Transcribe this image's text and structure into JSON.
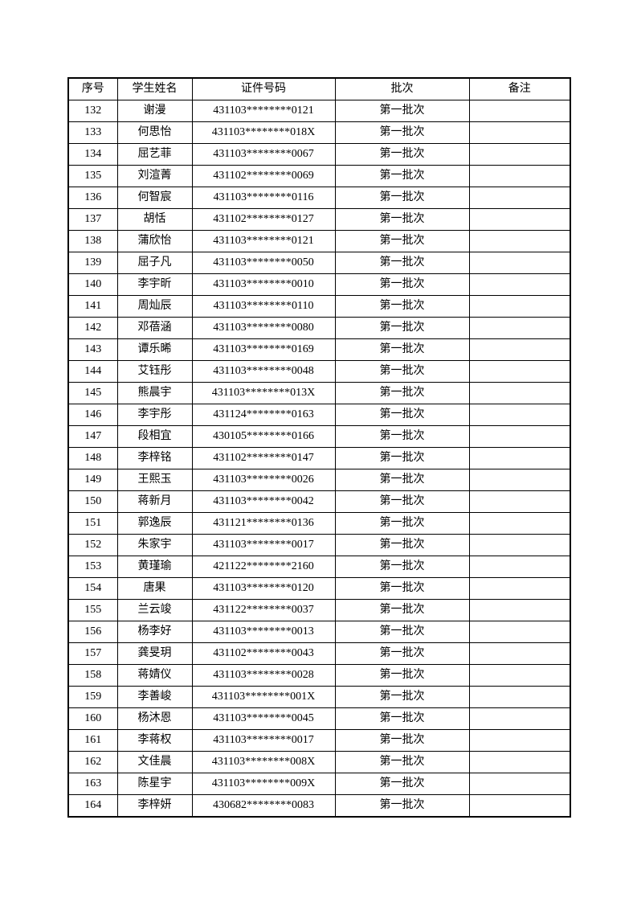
{
  "table": {
    "headers": [
      "序号",
      "学生姓名",
      "证件号码",
      "批次",
      "备注"
    ],
    "rows": [
      [
        "132",
        "谢漫",
        "431103********0121",
        "第一批次",
        ""
      ],
      [
        "133",
        "何思怡",
        "431103********018X",
        "第一批次",
        ""
      ],
      [
        "134",
        "屈艺菲",
        "431103********0067",
        "第一批次",
        ""
      ],
      [
        "135",
        "刘渲菁",
        "431102********0069",
        "第一批次",
        ""
      ],
      [
        "136",
        "何智宸",
        "431103********0116",
        "第一批次",
        ""
      ],
      [
        "137",
        "胡恬",
        "431102********0127",
        "第一批次",
        ""
      ],
      [
        "138",
        "蒲欣怡",
        "431103********0121",
        "第一批次",
        ""
      ],
      [
        "139",
        "屈子凡",
        "431103********0050",
        "第一批次",
        ""
      ],
      [
        "140",
        "李宇昕",
        "431103********0010",
        "第一批次",
        ""
      ],
      [
        "141",
        "周灿辰",
        "431103********0110",
        "第一批次",
        ""
      ],
      [
        "142",
        "邓蓓涵",
        "431103********0080",
        "第一批次",
        ""
      ],
      [
        "143",
        "谭乐晞",
        "431103********0169",
        "第一批次",
        ""
      ],
      [
        "144",
        "艾钰彤",
        "431103********0048",
        "第一批次",
        ""
      ],
      [
        "145",
        "熊晨宇",
        "431103********013X",
        "第一批次",
        ""
      ],
      [
        "146",
        "李宇彤",
        "431124********0163",
        "第一批次",
        ""
      ],
      [
        "147",
        "段相宜",
        "430105********0166",
        "第一批次",
        ""
      ],
      [
        "148",
        "李梓铭",
        "431102********0147",
        "第一批次",
        ""
      ],
      [
        "149",
        "王熙玉",
        "431103********0026",
        "第一批次",
        ""
      ],
      [
        "150",
        "蒋新月",
        "431103********0042",
        "第一批次",
        ""
      ],
      [
        "151",
        "郭逸辰",
        "431121********0136",
        "第一批次",
        ""
      ],
      [
        "152",
        "朱家宇",
        "431103********0017",
        "第一批次",
        ""
      ],
      [
        "153",
        "黄瑾瑜",
        "421122********2160",
        "第一批次",
        ""
      ],
      [
        "154",
        "唐果",
        "431103********0120",
        "第一批次",
        ""
      ],
      [
        "155",
        "兰云竣",
        "431122********0037",
        "第一批次",
        ""
      ],
      [
        "156",
        "杨李好",
        "431103********0013",
        "第一批次",
        ""
      ],
      [
        "157",
        "龚旻玥",
        "431102********0043",
        "第一批次",
        ""
      ],
      [
        "158",
        "蒋婧仪",
        "431103********0028",
        "第一批次",
        ""
      ],
      [
        "159",
        "李善峻",
        "431103********001X",
        "第一批次",
        ""
      ],
      [
        "160",
        "杨沐恩",
        "431103********0045",
        "第一批次",
        ""
      ],
      [
        "161",
        "李蒋权",
        "431103********0017",
        "第一批次",
        ""
      ],
      [
        "162",
        "文佳晨",
        "431103********008X",
        "第一批次",
        ""
      ],
      [
        "163",
        "陈星宇",
        "431103********009X",
        "第一批次",
        ""
      ],
      [
        "164",
        "李梓妍",
        "430682********0083",
        "第一批次",
        ""
      ]
    ]
  }
}
